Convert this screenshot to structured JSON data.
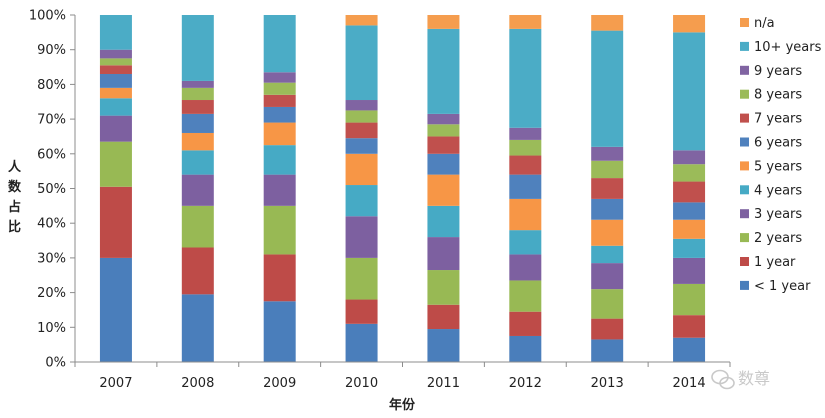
{
  "chart_data": {
    "type": "bar",
    "stacked": true,
    "normalized": true,
    "categories": [
      "2007",
      "2008",
      "2009",
      "2010",
      "2011",
      "2012",
      "2013",
      "2014"
    ],
    "series": [
      {
        "name": "< 1 year",
        "color": "#4a7ebb",
        "values": [
          30,
          19.5,
          17.5,
          11,
          9.5,
          7.5,
          6.5,
          7
        ]
      },
      {
        "name": "1 year",
        "color": "#be4b48",
        "values": [
          20.5,
          13.5,
          13.5,
          7,
          7,
          7,
          6,
          6.5
        ]
      },
      {
        "name": "2 years",
        "color": "#98b954",
        "values": [
          13,
          12,
          14,
          12,
          10,
          9,
          8.5,
          9
        ]
      },
      {
        "name": "3 years",
        "color": "#7d60a0",
        "values": [
          7.5,
          9,
          9,
          12,
          9.5,
          7.5,
          7.5,
          7.5
        ]
      },
      {
        "name": "4 years",
        "color": "#46aac5",
        "values": [
          5,
          7,
          8.5,
          9,
          9,
          7,
          5,
          5.5
        ]
      },
      {
        "name": "5 years",
        "color": "#f79646",
        "values": [
          3,
          5,
          6.5,
          9,
          9,
          9,
          7.5,
          5.5
        ]
      },
      {
        "name": "6 years",
        "color": "#4f81bd",
        "values": [
          4,
          5.5,
          4.5,
          4.5,
          6,
          7,
          6,
          5
        ]
      },
      {
        "name": "7 years",
        "color": "#c0504d",
        "values": [
          2.5,
          4,
          3.5,
          4.5,
          5,
          5.5,
          6,
          6
        ]
      },
      {
        "name": "8 years",
        "color": "#9bbb59",
        "values": [
          2,
          3.5,
          3.5,
          3.5,
          3.5,
          4.5,
          5,
          5
        ]
      },
      {
        "name": "9 years",
        "color": "#8064a2",
        "values": [
          2.5,
          2,
          3,
          3,
          3,
          3.5,
          4,
          4
        ]
      },
      {
        "name": "10+ years",
        "color": "#4bacc6",
        "values": [
          10,
          19,
          16.5,
          21.5,
          24.5,
          28.5,
          33.5,
          34
        ]
      },
      {
        "name": "n/a",
        "color": "#f59d4e",
        "values": [
          0,
          0,
          0,
          3,
          4,
          4,
          4.5,
          5
        ]
      }
    ],
    "title": "",
    "xlabel": "年份",
    "ylabel": "人数占比",
    "ylim": [
      0,
      100
    ],
    "y_ticks": [
      "0%",
      "10%",
      "20%",
      "30%",
      "40%",
      "50%",
      "60%",
      "70%",
      "80%",
      "90%",
      "100%"
    ],
    "grid": false,
    "legend_position": "right"
  },
  "watermark": {
    "text": "数尊",
    "icon": "wechat-icon"
  }
}
